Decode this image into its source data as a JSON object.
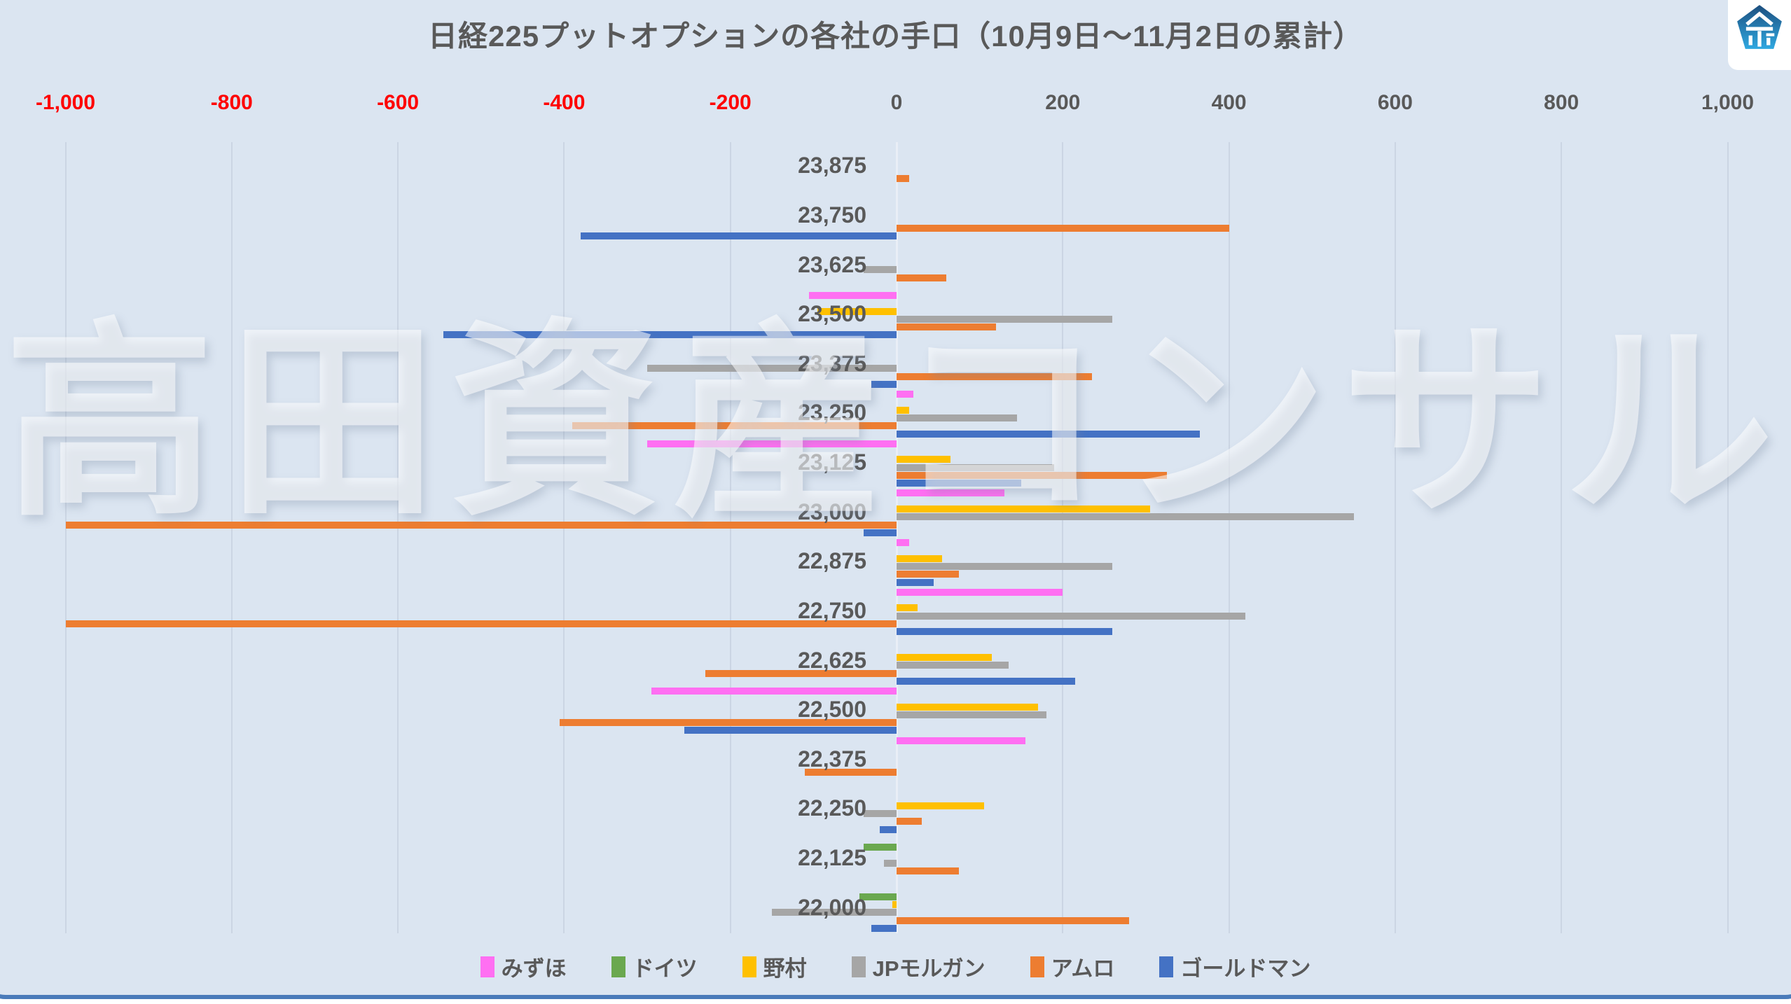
{
  "title": "日経225プットオプションの各社の手口（10月9日〜11月2日の累計）",
  "watermark": "高田資産コンサル",
  "colors": {
    "background": "#DBE5F1",
    "gridline": "#CBD5E3",
    "text": "#595959",
    "negative_tick": "#FF0000",
    "frame": "#4A7BBA",
    "logo_blue_dark": "#1C4E7E",
    "logo_blue_light": "#2FA8E1"
  },
  "chart_data": {
    "type": "bar",
    "orientation": "horizontal",
    "title": "日経225プットオプションの各社の手口（10月9日〜11月2日の累計）",
    "xlabel": "",
    "ylabel": "",
    "xlim": [
      -1000,
      1000
    ],
    "grid": true,
    "legend_position": "bottom",
    "x_ticks": [
      -1000,
      -800,
      -600,
      -400,
      -200,
      0,
      200,
      400,
      600,
      800,
      1000
    ],
    "x_tick_labels": [
      "-1,000",
      "-800",
      "-600",
      "-400",
      "-200",
      "0",
      "200",
      "400",
      "600",
      "800",
      "1,000"
    ],
    "categories": [
      "23,875",
      "23,750",
      "23,625",
      "23,500",
      "23,375",
      "23,250",
      "23,125",
      "23,000",
      "22,875",
      "22,750",
      "22,625",
      "22,500",
      "22,375",
      "22,250",
      "22,125",
      "22,000"
    ],
    "series": [
      {
        "id": "mizuho",
        "name": "みずほ",
        "color": "#FF6FF2",
        "values": [
          0,
          0,
          0,
          -105,
          0,
          20,
          -300,
          130,
          15,
          200,
          0,
          -295,
          155,
          0,
          0,
          0
        ]
      },
      {
        "id": "deutsche",
        "name": "ドイツ",
        "color": "#6AA84F",
        "values": [
          0,
          0,
          0,
          0,
          0,
          0,
          0,
          0,
          0,
          0,
          0,
          0,
          0,
          0,
          -40,
          -45
        ]
      },
      {
        "id": "nomura",
        "name": "野村",
        "color": "#FFC000",
        "values": [
          0,
          0,
          0,
          -95,
          0,
          15,
          65,
          305,
          55,
          25,
          115,
          170,
          0,
          105,
          0,
          -5
        ]
      },
      {
        "id": "jpmorgan",
        "name": "JPモルガン",
        "color": "#A6A6A6",
        "values": [
          0,
          0,
          -40,
          260,
          -300,
          145,
          190,
          550,
          260,
          420,
          135,
          180,
          0,
          -40,
          -15,
          -150
        ]
      },
      {
        "id": "amro",
        "name": "アムロ",
        "color": "#ED7D31",
        "values": [
          15,
          400,
          60,
          120,
          235,
          -390,
          325,
          -1000,
          75,
          -1000,
          -230,
          -405,
          -110,
          30,
          75,
          280
        ]
      },
      {
        "id": "goldman",
        "name": "ゴールドマン",
        "color": "#4472C4",
        "values": [
          0,
          -380,
          0,
          -545,
          -30,
          365,
          150,
          -40,
          45,
          260,
          215,
          -255,
          0,
          -20,
          0,
          -30
        ]
      }
    ]
  }
}
